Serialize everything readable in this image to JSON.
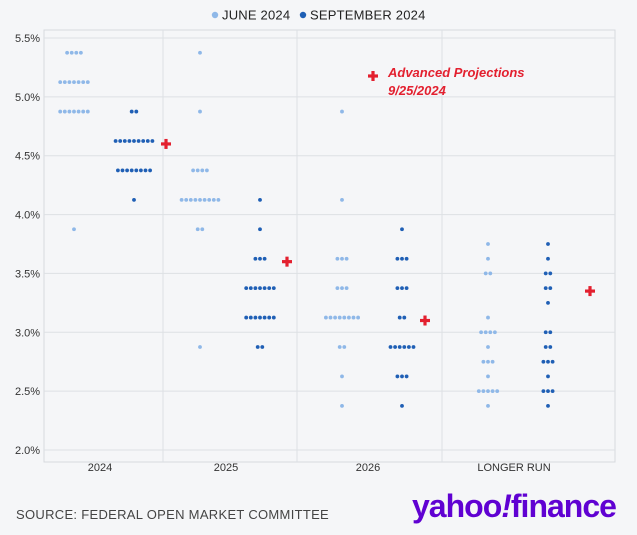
{
  "legend": [
    {
      "label": "JUNE 2024",
      "color": "#8fb8e8"
    },
    {
      "label": "SEPTEMBER 2024",
      "color": "#1f5fb5"
    }
  ],
  "source": "SOURCE: FEDERAL OPEN MARKET COMMITTEE",
  "logo": {
    "text": "yahoo/finance",
    "color": "#6001d2"
  },
  "annotation": {
    "line1": "Advanced Projections",
    "line2": "9/25/2024",
    "color": "#e3202f"
  },
  "chart_data": {
    "type": "scatter",
    "title": "",
    "xlabel": "",
    "ylabel": "",
    "categories": [
      "2024",
      "2025",
      "2026",
      "LONGER RUN"
    ],
    "yticks": [
      "2.0%",
      "2.5%",
      "3.0%",
      "3.5%",
      "4.0%",
      "4.5%",
      "5.0%",
      "5.5%"
    ],
    "ylim": [
      2.0,
      5.6
    ],
    "grid": true,
    "legend_position": "top-center",
    "series": [
      {
        "name": "JUNE 2024",
        "color": "#8fb8e8",
        "groups": [
          {
            "category": "2024",
            "points": [
              {
                "y": 5.375,
                "n": 4
              },
              {
                "y": 5.125,
                "n": 7
              },
              {
                "y": 4.875,
                "n": 7
              },
              {
                "y": 3.875,
                "n": 1
              }
            ]
          },
          {
            "category": "2025",
            "points": [
              {
                "y": 5.375,
                "n": 1
              },
              {
                "y": 4.875,
                "n": 1
              },
              {
                "y": 4.375,
                "n": 4
              },
              {
                "y": 4.125,
                "n": 9
              },
              {
                "y": 3.875,
                "n": 2
              },
              {
                "y": 2.875,
                "n": 1
              }
            ]
          },
          {
            "category": "2026",
            "points": [
              {
                "y": 4.875,
                "n": 1
              },
              {
                "y": 4.125,
                "n": 1
              },
              {
                "y": 3.625,
                "n": 3
              },
              {
                "y": 3.375,
                "n": 3
              },
              {
                "y": 3.125,
                "n": 8
              },
              {
                "y": 2.875,
                "n": 2
              },
              {
                "y": 2.625,
                "n": 1
              },
              {
                "y": 2.375,
                "n": 1
              }
            ]
          },
          {
            "category": "LONGER RUN",
            "points": [
              {
                "y": 3.75,
                "n": 1
              },
              {
                "y": 3.625,
                "n": 1
              },
              {
                "y": 3.5,
                "n": 2
              },
              {
                "y": 3.125,
                "n": 1
              },
              {
                "y": 3.0,
                "n": 4
              },
              {
                "y": 2.875,
                "n": 1
              },
              {
                "y": 2.75,
                "n": 3
              },
              {
                "y": 2.625,
                "n": 1
              },
              {
                "y": 2.5,
                "n": 5
              },
              {
                "y": 2.375,
                "n": 1
              }
            ]
          }
        ]
      },
      {
        "name": "SEPTEMBER 2024",
        "color": "#1f5fb5",
        "groups": [
          {
            "category": "2024",
            "points": [
              {
                "y": 4.875,
                "n": 2
              },
              {
                "y": 4.625,
                "n": 9
              },
              {
                "y": 4.375,
                "n": 8
              },
              {
                "y": 4.125,
                "n": 1
              }
            ]
          },
          {
            "category": "2025",
            "points": [
              {
                "y": 4.125,
                "n": 1
              },
              {
                "y": 3.875,
                "n": 1
              },
              {
                "y": 3.625,
                "n": 3
              },
              {
                "y": 3.375,
                "n": 7
              },
              {
                "y": 3.125,
                "n": 7
              },
              {
                "y": 2.875,
                "n": 2
              }
            ]
          },
          {
            "category": "2026",
            "points": [
              {
                "y": 3.875,
                "n": 1
              },
              {
                "y": 3.625,
                "n": 3
              },
              {
                "y": 3.375,
                "n": 3
              },
              {
                "y": 3.125,
                "n": 2
              },
              {
                "y": 2.875,
                "n": 6
              },
              {
                "y": 2.625,
                "n": 3
              },
              {
                "y": 2.375,
                "n": 1
              }
            ]
          },
          {
            "category": "LONGER RUN",
            "points": [
              {
                "y": 3.75,
                "n": 1
              },
              {
                "y": 3.625,
                "n": 1
              },
              {
                "y": 3.5,
                "n": 2
              },
              {
                "y": 3.375,
                "n": 2
              },
              {
                "y": 3.25,
                "n": 1
              },
              {
                "y": 3.0,
                "n": 2
              },
              {
                "y": 2.875,
                "n": 2
              },
              {
                "y": 2.75,
                "n": 3
              },
              {
                "y": 2.625,
                "n": 1
              },
              {
                "y": 2.5,
                "n": 3
              },
              {
                "y": 2.375,
                "n": 1
              }
            ]
          }
        ]
      }
    ],
    "markers": [
      {
        "category": "2024",
        "y": 4.6
      },
      {
        "category": "2025",
        "y": 3.6
      },
      {
        "category": "2026",
        "y": 3.1
      },
      {
        "category": "LONGER RUN",
        "y": 3.35
      }
    ]
  }
}
